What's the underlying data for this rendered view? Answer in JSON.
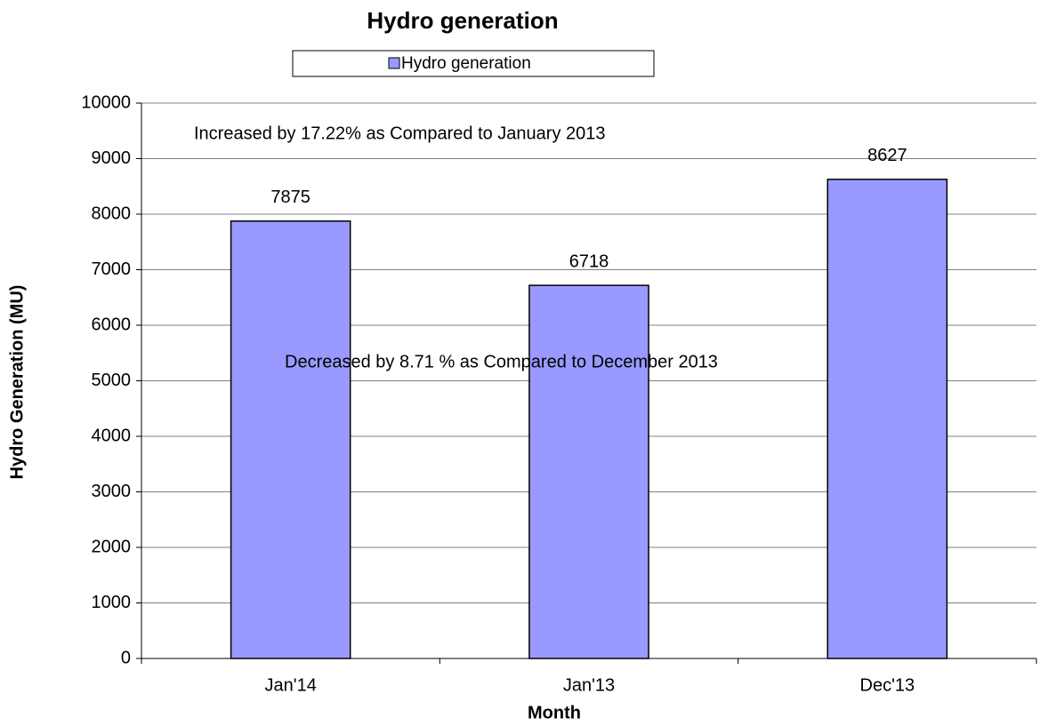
{
  "chart_data": {
    "type": "bar",
    "title": "Hydro generation",
    "categories": [
      "Jan'14",
      "Jan'13",
      "Dec'13"
    ],
    "series": [
      {
        "name": "Hydro generation",
        "color": "#9999ff",
        "values": [
          7875,
          6718,
          8627
        ]
      }
    ],
    "ylim": [
      0,
      10000
    ],
    "yticks": [
      0,
      1000,
      2000,
      3000,
      4000,
      5000,
      6000,
      7000,
      8000,
      9000,
      10000
    ],
    "grid": true,
    "x_label": "Month",
    "y_label": "Hydro Generation (MU)",
    "legend": "top",
    "annotations": [
      "Increased by 17.22% as Compared to January 2013",
      "Decreased by 8.71 % as Compared to December 2013"
    ]
  }
}
